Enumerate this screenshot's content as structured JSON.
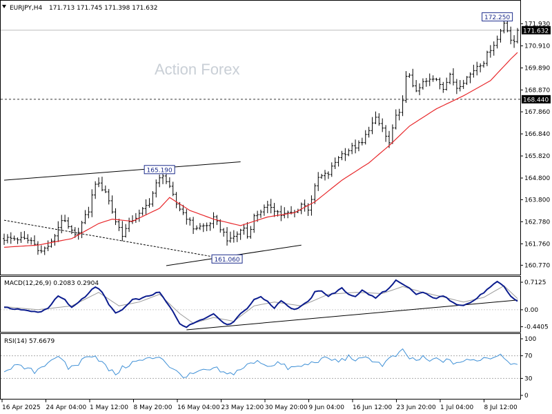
{
  "header": {
    "symbol_label": "EURJPY,H4",
    "ohlc_text": "171.713 171.745 171.398 171.632",
    "watermark": "Action Forex"
  },
  "colors": {
    "candle": "#000000",
    "ma": "#e8272a",
    "macd": "#0b1c8e",
    "signal": "#999999",
    "rsi": "#3d8fd6",
    "guide": "#000000",
    "level_dash": "#333333",
    "tag_bg": "#ffffff",
    "tag_border": "#1a2a8a"
  },
  "chart_data": [
    {
      "type": "candlestick",
      "title": "EURJPY,H4",
      "ylim": [
        160.4,
        172.9
      ],
      "y_ticks": [
        "171.930",
        "170.910",
        "169.890",
        "168.870",
        "167.860",
        "166.840",
        "165.820",
        "164.800",
        "163.800",
        "162.780",
        "161.760",
        "160.770"
      ],
      "x_ticks": [
        "16 Apr 2025",
        "24 Apr 04:00",
        "1 May 12:00",
        "8 May 20:00",
        "16 May 04:00",
        "23 May 12:00",
        "30 May 20:00",
        "9 Jun 04:00",
        "16 Jun 12:00",
        "23 Jun 20:00",
        "1 Jul 04:00",
        "8 Jul 12:00"
      ],
      "price_path": [
        [
          0,
          162.0
        ],
        [
          4,
          162.0
        ],
        [
          8,
          161.9
        ],
        [
          11,
          161.4
        ],
        [
          14,
          161.8
        ],
        [
          17,
          162.9
        ],
        [
          19,
          162.5
        ],
        [
          21,
          162.1
        ],
        [
          25,
          163.3
        ],
        [
          27,
          164.6
        ],
        [
          30,
          164.2
        ],
        [
          33,
          162.8
        ],
        [
          35,
          162.2
        ],
        [
          38,
          162.9
        ],
        [
          40,
          163.1
        ],
        [
          43,
          163.7
        ],
        [
          45,
          164.5
        ],
        [
          47,
          165.0
        ],
        [
          49,
          164.3
        ],
        [
          51,
          163.6
        ],
        [
          54,
          163.0
        ],
        [
          56,
          162.5
        ],
        [
          60,
          162.6
        ],
        [
          62,
          162.9
        ],
        [
          64,
          162.5
        ],
        [
          66,
          162.0
        ],
        [
          67,
          161.9
        ],
        [
          68,
          162.1
        ],
        [
          71,
          162.5
        ],
        [
          72,
          162.1
        ],
        [
          74,
          163.0
        ],
        [
          76,
          163.3
        ],
        [
          79,
          163.5
        ],
        [
          82,
          163.1
        ],
        [
          86,
          163.2
        ],
        [
          88,
          163.6
        ],
        [
          90,
          163.4
        ],
        [
          93,
          164.8
        ],
        [
          96,
          165.0
        ],
        [
          99,
          165.8
        ],
        [
          103,
          166.2
        ],
        [
          106,
          166.4
        ],
        [
          108,
          167.1
        ],
        [
          110,
          167.5
        ],
        [
          112,
          167.1
        ],
        [
          113,
          166.7
        ],
        [
          114,
          166.4
        ],
        [
          116,
          167.6
        ],
        [
          118,
          168.3
        ],
        [
          119,
          169.4
        ],
        [
          120,
          169.6
        ],
        [
          122,
          168.7
        ],
        [
          124,
          169.2
        ],
        [
          126,
          169.3
        ],
        [
          128,
          169.4
        ],
        [
          130,
          169.0
        ],
        [
          132,
          169.5
        ],
        [
          134,
          169.0
        ],
        [
          136,
          169.3
        ],
        [
          138,
          169.6
        ],
        [
          140,
          170.0
        ],
        [
          142,
          170.2
        ],
        [
          144,
          170.8
        ],
        [
          146,
          171.2
        ],
        [
          148,
          172.0
        ],
        [
          149,
          171.7
        ],
        [
          150,
          171.2
        ],
        [
          151,
          171.0
        ],
        [
          152,
          171.63
        ]
      ],
      "ma_path": [
        [
          0,
          161.6
        ],
        [
          10,
          161.7
        ],
        [
          20,
          162.0
        ],
        [
          28,
          162.7
        ],
        [
          32,
          162.9
        ],
        [
          38,
          162.8
        ],
        [
          46,
          163.4
        ],
        [
          49,
          163.9
        ],
        [
          55,
          163.3
        ],
        [
          62,
          162.9
        ],
        [
          70,
          162.6
        ],
        [
          78,
          163.0
        ],
        [
          86,
          163.2
        ],
        [
          92,
          163.7
        ],
        [
          100,
          164.7
        ],
        [
          108,
          165.5
        ],
        [
          114,
          166.3
        ],
        [
          120,
          167.2
        ],
        [
          128,
          168.0
        ],
        [
          136,
          168.6
        ],
        [
          144,
          169.3
        ],
        [
          150,
          170.3
        ],
        [
          152,
          170.6
        ]
      ],
      "annotations": [
        {
          "label": "165.190",
          "value": 165.19
        },
        {
          "label": "161.060",
          "value": 161.06
        },
        {
          "label": "172.250",
          "value": 172.25
        }
      ],
      "levels": [
        {
          "label": "168.440",
          "value": 168.44,
          "style": "dashed"
        },
        {
          "label": "171.632",
          "value": 171.632,
          "style": "solid-light",
          "current": true
        }
      ],
      "trendlines": [
        {
          "from": [
            0,
            164.7
          ],
          "to": [
            70,
            165.55
          ]
        },
        {
          "from": [
            0,
            162.85
          ],
          "to": [
            66,
            161.05
          ],
          "style": "dashed"
        },
        {
          "from": [
            48,
            160.75
          ],
          "to": [
            88,
            161.7
          ]
        }
      ]
    },
    {
      "type": "line",
      "title": "MACD(12,26,9) 0.2083 0.2904",
      "ylim": [
        -0.52,
        0.82
      ],
      "y_ticks": [
        "0.7125",
        "0.00",
        "-0.4405"
      ],
      "series": [
        {
          "name": "MACD",
          "values": [
            [
              0,
              0.05
            ],
            [
              4,
              0.02
            ],
            [
              8,
              -0.05
            ],
            [
              11,
              -0.05
            ],
            [
              13,
              0.05
            ],
            [
              16,
              0.35
            ],
            [
              18,
              0.25
            ],
            [
              20,
              0.05
            ],
            [
              24,
              0.35
            ],
            [
              27,
              0.6
            ],
            [
              29,
              0.45
            ],
            [
              31,
              0.15
            ],
            [
              33,
              -0.1
            ],
            [
              35,
              0.0
            ],
            [
              38,
              0.25
            ],
            [
              41,
              0.3
            ],
            [
              44,
              0.4
            ],
            [
              46,
              0.45
            ],
            [
              48,
              0.2
            ],
            [
              50,
              -0.05
            ],
            [
              52,
              -0.35
            ],
            [
              54,
              -0.45
            ],
            [
              56,
              -0.35
            ],
            [
              58,
              -0.25
            ],
            [
              60,
              -0.2
            ],
            [
              62,
              -0.1
            ],
            [
              64,
              -0.25
            ],
            [
              66,
              -0.4
            ],
            [
              68,
              -0.3
            ],
            [
              70,
              -0.1
            ],
            [
              72,
              0.05
            ],
            [
              74,
              0.25
            ],
            [
              76,
              0.35
            ],
            [
              78,
              0.2
            ],
            [
              80,
              0.05
            ],
            [
              82,
              0.25
            ],
            [
              84,
              0.1
            ],
            [
              86,
              0.0
            ],
            [
              88,
              0.1
            ],
            [
              90,
              0.2
            ],
            [
              92,
              0.45
            ],
            [
              94,
              0.5
            ],
            [
              96,
              0.35
            ],
            [
              98,
              0.45
            ],
            [
              100,
              0.55
            ],
            [
              102,
              0.4
            ],
            [
              104,
              0.35
            ],
            [
              106,
              0.5
            ],
            [
              108,
              0.4
            ],
            [
              110,
              0.3
            ],
            [
              112,
              0.45
            ],
            [
              114,
              0.55
            ],
            [
              116,
              0.75
            ],
            [
              118,
              0.65
            ],
            [
              120,
              0.55
            ],
            [
              122,
              0.4
            ],
            [
              124,
              0.45
            ],
            [
              126,
              0.35
            ],
            [
              128,
              0.3
            ],
            [
              130,
              0.35
            ],
            [
              132,
              0.25
            ],
            [
              134,
              0.15
            ],
            [
              136,
              0.12
            ],
            [
              138,
              0.18
            ],
            [
              140,
              0.3
            ],
            [
              142,
              0.45
            ],
            [
              144,
              0.58
            ],
            [
              146,
              0.72
            ],
            [
              148,
              0.6
            ],
            [
              150,
              0.35
            ],
            [
              152,
              0.21
            ]
          ]
        },
        {
          "name": "Signal",
          "values": [
            [
              0,
              0.08
            ],
            [
              10,
              0.0
            ],
            [
              20,
              0.1
            ],
            [
              28,
              0.45
            ],
            [
              34,
              0.1
            ],
            [
              40,
              0.2
            ],
            [
              46,
              0.4
            ],
            [
              52,
              -0.1
            ],
            [
              56,
              -0.35
            ],
            [
              62,
              -0.2
            ],
            [
              68,
              -0.3
            ],
            [
              74,
              0.1
            ],
            [
              80,
              0.2
            ],
            [
              88,
              0.1
            ],
            [
              96,
              0.4
            ],
            [
              104,
              0.45
            ],
            [
              112,
              0.42
            ],
            [
              118,
              0.6
            ],
            [
              124,
              0.45
            ],
            [
              130,
              0.33
            ],
            [
              136,
              0.2
            ],
            [
              142,
              0.32
            ],
            [
              148,
              0.62
            ],
            [
              152,
              0.29
            ]
          ]
        }
      ],
      "trendlines": [
        {
          "from": [
            54,
            -0.52
          ],
          "to": [
            152,
            0.25
          ]
        }
      ]
    },
    {
      "type": "line",
      "title": "RSI(14) 57.6679",
      "ylim": [
        0,
        100
      ],
      "y_ticks": [
        "100",
        "70",
        "30",
        "0"
      ],
      "levels": [
        70,
        30
      ],
      "series": [
        {
          "name": "RSI",
          "values": [
            [
              0,
              45
            ],
            [
              3,
              52
            ],
            [
              6,
              48
            ],
            [
              9,
              42
            ],
            [
              12,
              55
            ],
            [
              15,
              68
            ],
            [
              17,
              62
            ],
            [
              19,
              48
            ],
            [
              22,
              56
            ],
            [
              25,
              72
            ],
            [
              27,
              70
            ],
            [
              29,
              58
            ],
            [
              31,
              45
            ],
            [
              33,
              38
            ],
            [
              35,
              48
            ],
            [
              38,
              58
            ],
            [
              41,
              62
            ],
            [
              44,
              66
            ],
            [
              46,
              70
            ],
            [
              48,
              58
            ],
            [
              50,
              45
            ],
            [
              52,
              38
            ],
            [
              54,
              33
            ],
            [
              57,
              40
            ],
            [
              60,
              44
            ],
            [
              63,
              46
            ],
            [
              66,
              36
            ],
            [
              68,
              40
            ],
            [
              71,
              50
            ],
            [
              73,
              56
            ],
            [
              76,
              60
            ],
            [
              78,
              52
            ],
            [
              81,
              58
            ],
            [
              84,
              48
            ],
            [
              87,
              50
            ],
            [
              90,
              55
            ],
            [
              93,
              62
            ],
            [
              96,
              65
            ],
            [
              99,
              60
            ],
            [
              102,
              68
            ],
            [
              105,
              62
            ],
            [
              108,
              66
            ],
            [
              110,
              60
            ],
            [
              112,
              54
            ],
            [
              114,
              64
            ],
            [
              116,
              70
            ],
            [
              118,
              78
            ],
            [
              120,
              66
            ],
            [
              122,
              62
            ],
            [
              124,
              66
            ],
            [
              126,
              60
            ],
            [
              128,
              64
            ],
            [
              130,
              62
            ],
            [
              133,
              58
            ],
            [
              136,
              60
            ],
            [
              139,
              62
            ],
            [
              142,
              66
            ],
            [
              145,
              68
            ],
            [
              147,
              74
            ],
            [
              149,
              62
            ],
            [
              151,
              55
            ],
            [
              152,
              58
            ]
          ]
        }
      ]
    }
  ]
}
